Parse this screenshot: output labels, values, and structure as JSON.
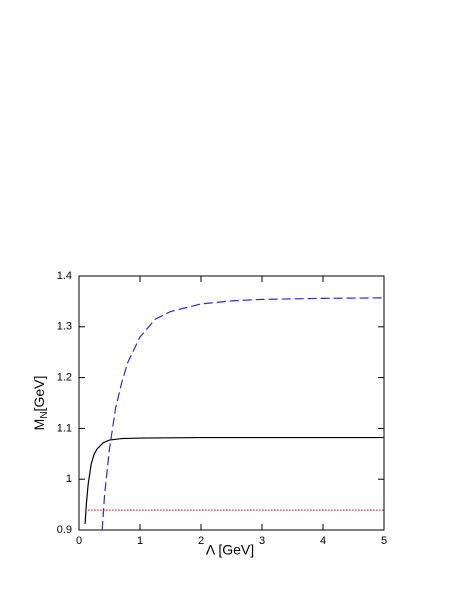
{
  "chart_data": {
    "type": "line",
    "xlabel": "Λ [GeV]",
    "ylabel_main": "M",
    "ylabel_sub": "N",
    "ylabel_unit": "[GeV]",
    "xlim": [
      0,
      5
    ],
    "xticks": [
      0,
      1,
      2,
      3,
      4,
      5
    ],
    "ylim": [
      0.9,
      1.4
    ],
    "yticks": [
      0.9,
      1,
      1.1,
      1.2,
      1.3,
      1.4
    ],
    "series": [
      {
        "color": "#000000",
        "style": "solid",
        "x": [
          0.1,
          0.12,
          0.15,
          0.2,
          0.25,
          0.3,
          0.4,
          0.5,
          0.7,
          1,
          2,
          3,
          5
        ],
        "values": [
          0.912,
          0.95,
          0.99,
          1.03,
          1.05,
          1.06,
          1.072,
          1.077,
          1.08,
          1.081,
          1.082,
          1.082,
          1.082
        ]
      },
      {
        "color": "#2b2bd8",
        "style": "dashed",
        "x": [
          0.38,
          0.42,
          0.5,
          0.6,
          0.7,
          0.8,
          1,
          1.25,
          1.5,
          2,
          2.5,
          3,
          4,
          5
        ],
        "values": [
          0.9,
          0.97,
          1.06,
          1.14,
          1.19,
          1.23,
          1.28,
          1.315,
          1.33,
          1.345,
          1.351,
          1.354,
          1.356,
          1.357
        ]
      },
      {
        "color": "#e02020",
        "style": "dotted",
        "x": [
          0.1,
          5
        ],
        "values": [
          0.939,
          0.939
        ]
      }
    ]
  }
}
